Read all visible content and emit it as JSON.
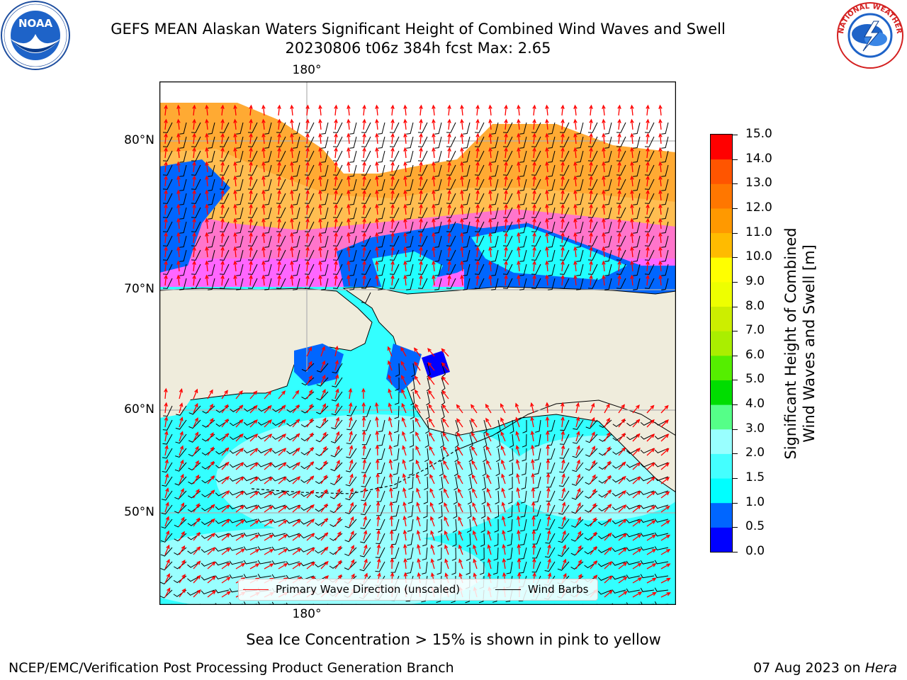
{
  "header": {
    "title_line1": "GEFS MEAN Alaskan Waters Significant Height of Combined Wind Waves and Swell",
    "title_line2": "20230806 t06z 384h fcst   Max: 2.65"
  },
  "logos": {
    "left": {
      "name": "NOAA",
      "ring_text": "NATIONAL OCEANIC AND ATMOSPHERIC ADMINISTRATION · U.S. DEPARTMENT OF COMMERCE"
    },
    "right": {
      "name": "NATIONAL WEATHER SERVICE"
    }
  },
  "map": {
    "lon_label_top": "180°",
    "lon_label_bottom": "180°",
    "lat_labels": [
      "80°N",
      "70°N",
      "60°N",
      "50°N"
    ],
    "colors": {
      "land": "#efecdc",
      "ocean_low": "#99ffff",
      "ocean_mid": "#00ffff",
      "ocean_blue": "#0066ff",
      "ocean_deep": "#0000ff",
      "ice_pink": "#ff33ff",
      "ice_orange": "#ffaa33",
      "ice_yellow": "#ffcc33",
      "wave_arrow": "#ff0000",
      "wind_barb": "#000000",
      "gridline": "#b0b0b0"
    },
    "legend": {
      "wave_label": "Primary Wave Direction (unscaled)",
      "wind_label": "Wind Barbs"
    }
  },
  "colorbar": {
    "label_line1": "Significant Height of Combined",
    "label_line2": "Wind Waves and Swell [m]",
    "ticks": [
      "0.0",
      "0.5",
      "1.0",
      "1.5",
      "2.0",
      "3.0",
      "4.0",
      "5.0",
      "6.0",
      "7.0",
      "8.0",
      "9.0",
      "10.0",
      "11.0",
      "12.0",
      "13.0",
      "14.0",
      "15.0"
    ],
    "colors": [
      "#0000ff",
      "#0066ff",
      "#00ffff",
      "#44ffff",
      "#99ffff",
      "#55ff88",
      "#00dd00",
      "#55ee00",
      "#aaee00",
      "#ccee00",
      "#eeff00",
      "#ffff00",
      "#ffbb00",
      "#ff9900",
      "#ff7700",
      "#ff5500",
      "#ff0000"
    ]
  },
  "caption": "Sea Ice Concentration > 15% is shown in pink to yellow",
  "footer": {
    "left": "NCEP/EMC/Verification Post Processing Product Generation Branch",
    "right_date": "07 Aug 2023 on ",
    "right_host": "Hera"
  }
}
